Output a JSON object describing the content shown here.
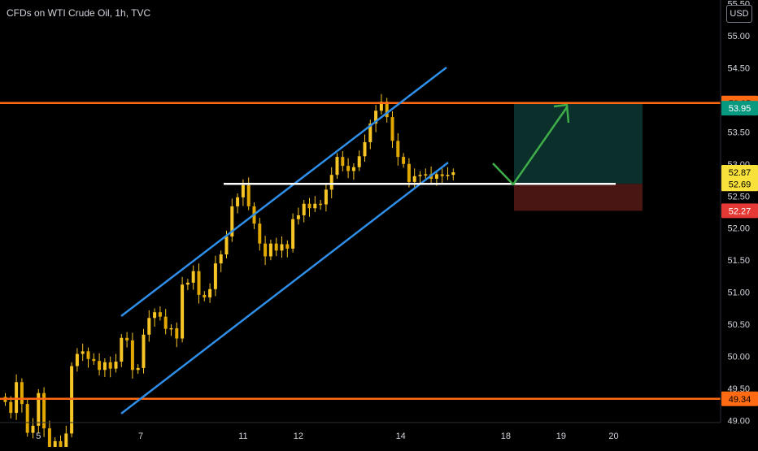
{
  "header": {
    "title": "CFDs on WTI Crude Oil, 1h, TVC",
    "currency": "USD"
  },
  "colors": {
    "background": "#000000",
    "candle_up": "#f7c525",
    "candle_down": "#f7c525",
    "channel": "#2e8ee8",
    "resistance": "#ff6a13",
    "support_line": "#ffffff",
    "projection": "#3fae49",
    "target_zone": "#0b2f2b",
    "stop_zone": "#4a1614",
    "axis_text": "#d1d4dc"
  },
  "chart_data": {
    "type": "candlestick",
    "y_axis": {
      "min": 48.97,
      "max": 55.53,
      "ticks": [
        49.0,
        49.5,
        50.0,
        50.5,
        51.0,
        51.5,
        52.0,
        52.5,
        53.0,
        53.5,
        54.0,
        54.5,
        55.0,
        55.5
      ],
      "tick_labels": [
        "49.00",
        "49.50",
        "50.00",
        "50.50",
        "51.00",
        "51.50",
        "52.00",
        "52.50",
        "53.00",
        "53.50",
        "54.00",
        "54.50",
        "55.00",
        "55.50"
      ]
    },
    "x_axis": {
      "min": 0,
      "max": 132,
      "ticks": [
        {
          "x": 6,
          "label": "5"
        },
        {
          "x": 24.5,
          "label": "7"
        },
        {
          "x": 43,
          "label": "11"
        },
        {
          "x": 53,
          "label": "12"
        },
        {
          "x": 71.5,
          "label": "14"
        },
        {
          "x": 90.5,
          "label": "18"
        },
        {
          "x": 100.5,
          "label": "19"
        },
        {
          "x": 110,
          "label": "20"
        }
      ]
    },
    "candles_close": [
      49.29,
      49.12,
      49.6,
      49.26,
      48.81,
      48.92,
      49.43,
      48.88,
      48.48,
      48.68,
      48.5,
      48.8,
      49.85,
      50.04,
      50.08,
      49.96,
      49.93,
      49.79,
      49.91,
      49.81,
      49.92,
      50.29,
      50.25,
      49.79,
      49.82,
      50.34,
      50.6,
      50.69,
      50.62,
      50.43,
      50.44,
      50.28,
      51.12,
      51.15,
      51.33,
      50.96,
      50.92,
      51.05,
      51.45,
      51.59,
      51.87,
      52.34,
      52.48,
      52.67,
      52.34,
      52.07,
      51.76,
      51.56,
      51.76,
      51.65,
      51.75,
      51.68,
      52.14,
      52.2,
      52.38,
      52.31,
      52.38,
      52.37,
      52.6,
      52.83,
      53.11,
      52.97,
      52.89,
      52.95,
      53.12,
      53.34,
      53.63,
      53.83,
      53.97,
      53.73,
      53.36,
      53.11,
      53.0,
      52.72,
      52.81,
      52.83,
      52.84,
      52.77,
      52.84,
      52.81,
      52.83,
      52.87
    ],
    "resistance": {
      "value": 53.95,
      "label": "53.95"
    },
    "support": {
      "value": 49.34,
      "label": "49.34"
    },
    "horizontal_level": {
      "value": 52.69,
      "label": "52.69"
    },
    "price_badges": [
      {
        "value": 53.95,
        "label": "53.95",
        "color": "#ff6a13",
        "text_color": "#000000"
      },
      {
        "value": 53.87,
        "label": "53.95",
        "color": "#089981",
        "text_color": "#ffffff"
      },
      {
        "value": 52.87,
        "label": "52.87",
        "color": "#f7e13a",
        "text_color": "#000000"
      },
      {
        "value": 52.69,
        "label": "52.69",
        "color": "#f7e13a",
        "text_color": "#000000"
      },
      {
        "value": 52.27,
        "label": "52.27",
        "color": "#e53935",
        "text_color": "#ffffff"
      },
      {
        "value": 49.34,
        "label": "49.34",
        "color": "#ff6a13",
        "text_color": "#000000"
      }
    ],
    "position": {
      "entry": 52.69,
      "target": 53.95,
      "stop": 52.27
    },
    "legend": "none",
    "grid": false
  }
}
